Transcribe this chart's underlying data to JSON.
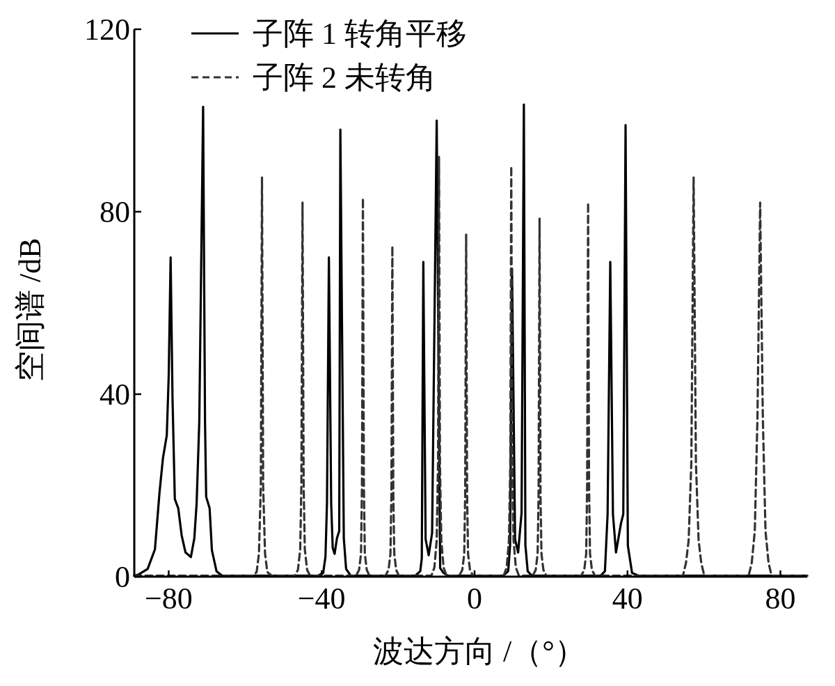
{
  "chart_data": {
    "type": "line",
    "xlabel": "波达方向 /（°）",
    "ylabel": "空间谱 /dB",
    "xlim": [
      -89,
      87
    ],
    "ylim": [
      0,
      120
    ],
    "xticks": [
      -80,
      -40,
      0,
      40,
      80
    ],
    "yticks": [
      0,
      40,
      80,
      120
    ],
    "legend": "top left",
    "series": [
      {
        "name": "子阵 1 转角平移",
        "color": "#000000",
        "line_style": "solid",
        "x": [
          -89,
          -87.8,
          -85.5,
          -83.6,
          -82.4,
          -81.5,
          -80.5,
          -80,
          -79.5,
          -79,
          -78.4,
          -77.5,
          -76.6,
          -75.6,
          -74.2,
          -73.3,
          -72.7,
          -72,
          -71,
          -70.5,
          -70.2,
          -69.3,
          -68.7,
          -67.5,
          -66,
          -41,
          -39.6,
          -39,
          -38.6,
          -38.1,
          -37.5,
          -37.1,
          -36.6,
          -36,
          -35.4,
          -35.1,
          -34.2,
          -33.6,
          -32.4,
          -15.5,
          -14.2,
          -13.8,
          -13.4,
          -12.8,
          -12,
          -11.1,
          -9.9,
          -9,
          -8.2,
          -7,
          7.5,
          8.8,
          9.3,
          9.8,
          10.6,
          11.4,
          12.3,
          12.9,
          13.3,
          13.9,
          15,
          33,
          34.1,
          34.8,
          35.5,
          36.2,
          37,
          38.3,
          38.9,
          39.5,
          40.1,
          41.2,
          43,
          87
        ],
        "values": [
          0.2,
          0.5,
          1.7,
          6,
          18.5,
          26,
          31,
          44,
          70,
          39,
          17,
          15,
          9,
          5.3,
          4.3,
          8.4,
          16,
          34,
          103,
          34,
          17.5,
          15,
          5.8,
          1.2,
          0.2,
          0.2,
          0.8,
          4.3,
          16,
          70,
          16,
          6.3,
          5,
          8.4,
          10,
          98,
          8.4,
          1.7,
          0.2,
          0.2,
          1.2,
          4,
          69,
          8.2,
          4.7,
          9.6,
          100,
          1.9,
          0.9,
          0.2,
          0.2,
          1.2,
          6.9,
          67.5,
          8.2,
          5.3,
          14,
          103.5,
          6.9,
          1.2,
          0.2,
          0.2,
          1.2,
          13.7,
          69,
          13.7,
          5.3,
          11.7,
          13.7,
          99,
          6.8,
          0.8,
          0.2,
          0.2
        ]
      },
      {
        "name": "子阵 2 未转角",
        "color": "#333333",
        "line_style": "dashed",
        "x": [
          -89,
          -58,
          -57,
          -56.4,
          -55.9,
          -55.6,
          -55.3,
          -54.8,
          -54.2,
          -53,
          -47,
          -46.2,
          -45.6,
          -45.3,
          -45,
          -44.7,
          -44.4,
          -43.8,
          -43,
          -31,
          -30.2,
          -29.7,
          -29.45,
          -29.2,
          -28.95,
          -28.7,
          -28.2,
          -27.5,
          -23.3,
          -22.5,
          -22,
          -21.75,
          -21.5,
          -21.25,
          -21,
          -20.5,
          -19.8,
          -11.3,
          -10.5,
          -9.9,
          -9.55,
          -9.3,
          -9.05,
          -8.7,
          -8.1,
          -7.3,
          -4,
          -3.2,
          -2.7,
          -2.45,
          -2.2,
          -1.95,
          -1.7,
          -1.2,
          -0.4,
          7.6,
          8.4,
          9,
          9.35,
          9.6,
          9.85,
          10.2,
          10.8,
          11.6,
          15.2,
          16,
          16.5,
          16.75,
          17,
          17.25,
          17.5,
          18,
          18.8,
          27.9,
          28.7,
          29.2,
          29.45,
          29.7,
          29.95,
          30.2,
          30.7,
          31.5,
          54.5,
          55.3,
          56,
          56.7,
          57.3,
          57.9,
          58.6,
          59.3,
          60.1,
          71.7,
          72.5,
          73.3,
          74,
          74.7,
          75.4,
          76.1,
          76.9,
          77.7,
          87
        ],
        "values": [
          0.2,
          0.2,
          1,
          5,
          20,
          87.5,
          20,
          5,
          1,
          0.2,
          0.2,
          1.5,
          6,
          20,
          82,
          20,
          6,
          1.5,
          0.2,
          0.2,
          1.5,
          5,
          20,
          83,
          20,
          5,
          1.5,
          0.2,
          0.2,
          1.5,
          5,
          18,
          72.5,
          18,
          5,
          1.5,
          0.2,
          0.2,
          2,
          8,
          25,
          92,
          25,
          8,
          2,
          0.2,
          0.2,
          1.5,
          5,
          18,
          75,
          18,
          5,
          1.5,
          0.2,
          0.2,
          2,
          8,
          25,
          90,
          25,
          8,
          2,
          0.2,
          0.2,
          1.5,
          5,
          18,
          78.5,
          18,
          5,
          1.5,
          0.2,
          0.2,
          1.5,
          5,
          20,
          82,
          20,
          5,
          1.5,
          0.2,
          0.2,
          3,
          8,
          25,
          87.5,
          25,
          8,
          3,
          0.2,
          0.2,
          3,
          10,
          35,
          82,
          35,
          10,
          3,
          0.2,
          0.2
        ]
      }
    ]
  }
}
